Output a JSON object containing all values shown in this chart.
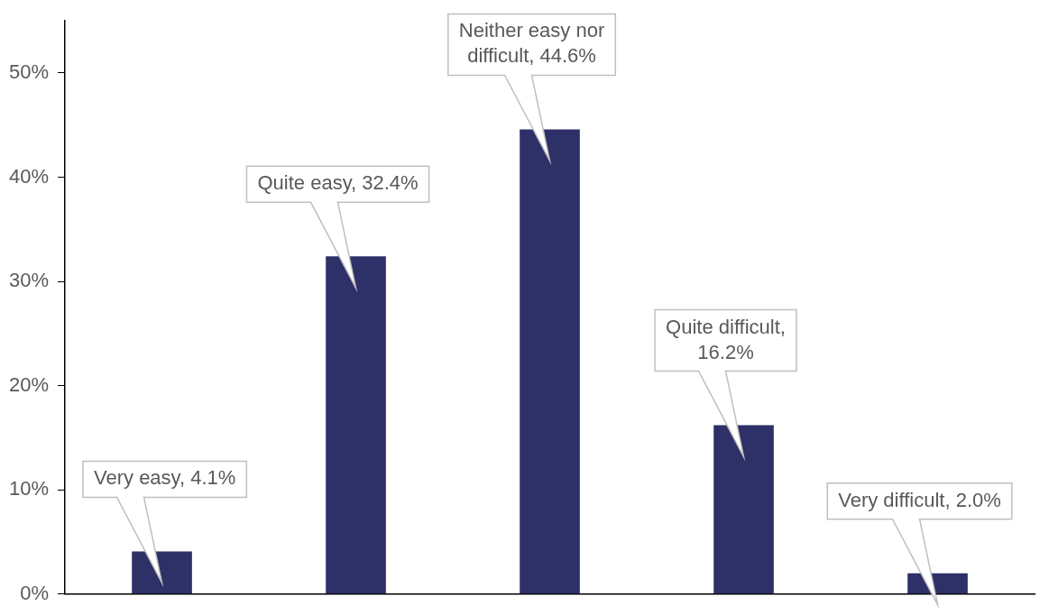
{
  "chart_data": {
    "type": "bar",
    "categories": [
      null,
      null,
      null,
      null,
      null
    ],
    "values": [
      4.1,
      32.4,
      44.6,
      16.2,
      2.0
    ],
    "value_labels": [
      "Very easy, 4.1%",
      "Quite easy, 32.4%",
      "Neither easy nor difficult, 44.6%",
      "Quite difficult, 16.2%",
      "Very difficult, 2.0%"
    ],
    "color": "#2e3068",
    "ylim": [
      0,
      55
    ],
    "yticks": [
      {
        "value": 0,
        "label": "0%"
      },
      {
        "value": 10,
        "label": "10%"
      },
      {
        "value": 20,
        "label": "20%"
      },
      {
        "value": 30,
        "label": "30%"
      },
      {
        "value": 40,
        "label": "40%"
      },
      {
        "value": 50,
        "label": "50%"
      }
    ],
    "grid": false,
    "legend": false,
    "tick_labels": "y"
  }
}
